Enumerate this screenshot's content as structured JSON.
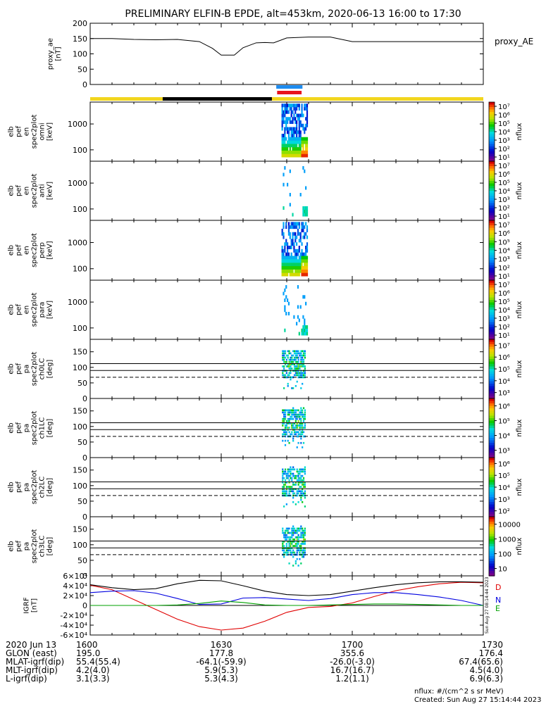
{
  "title": "PRELIMINARY ELFIN-B EPDE, alt=453km, 2020-06-13 16:00 to 17:30",
  "chart_data": [
    {
      "type": "line",
      "ylabel": [
        "proxy_ae",
        "[nT]"
      ],
      "legend": "proxy_AE",
      "ylim": [
        0,
        200
      ],
      "yticks": [
        "0",
        "50",
        "100",
        "150",
        "200"
      ],
      "x_minutes": [
        0,
        5,
        10,
        15,
        20,
        25,
        28,
        30,
        33,
        35,
        38,
        40,
        42,
        45,
        50,
        55,
        60,
        65,
        70,
        75,
        80,
        85,
        90
      ],
      "values": [
        150,
        150,
        147,
        146,
        147,
        140,
        118,
        96,
        96,
        120,
        136,
        137,
        136,
        152,
        155,
        155,
        140,
        140,
        140,
        140,
        140,
        140,
        140
      ]
    },
    {
      "type": "heatmap",
      "ylabel": [
        "elb",
        "pef",
        "en",
        "spec2plot",
        "omni",
        "[keV]"
      ],
      "yticks": [
        "100",
        "1000"
      ],
      "colorbar_ticks": [
        "10¹",
        "10²",
        "10³",
        "10⁴",
        "10⁵",
        "10⁶",
        "10⁷"
      ],
      "colorbar_label": "nflux",
      "log_scale": true
    },
    {
      "type": "heatmap",
      "ylabel": [
        "elb",
        "pef",
        "en",
        "spec2plot",
        "anti",
        "[keV]"
      ],
      "yticks": [
        "100",
        "1000"
      ],
      "colorbar_ticks": [
        "10¹",
        "10²",
        "10³",
        "10⁴",
        "10⁵",
        "10⁶",
        "10⁷"
      ],
      "colorbar_label": "nflux",
      "log_scale": true
    },
    {
      "type": "heatmap",
      "ylabel": [
        "elb",
        "pef",
        "en",
        "spec2plot",
        "perp",
        "[keV]"
      ],
      "yticks": [
        "100",
        "1000"
      ],
      "colorbar_ticks": [
        "10¹",
        "10²",
        "10³",
        "10⁴",
        "10⁵",
        "10⁶",
        "10⁷"
      ],
      "colorbar_label": "nflux",
      "log_scale": true
    },
    {
      "type": "heatmap",
      "ylabel": [
        "elb",
        "pef",
        "en",
        "spec2plot",
        "para",
        "[keV]"
      ],
      "yticks": [
        "100",
        "1000"
      ],
      "colorbar_ticks": [
        "10¹",
        "10²",
        "10³",
        "10⁴",
        "10⁵",
        "10⁶",
        "10⁷"
      ],
      "colorbar_label": "nflux",
      "log_scale": true
    },
    {
      "type": "heatmap",
      "ylabel": [
        "elb",
        "pef",
        "pa",
        "spec2plot",
        "ch0LC",
        "[deg]"
      ],
      "yticks": [
        "0",
        "50",
        "100",
        "150"
      ],
      "colorbar_ticks": [
        "10³",
        "10⁴",
        "10⁵",
        "10⁶",
        "10⁷"
      ],
      "colorbar_label": "nflux"
    },
    {
      "type": "heatmap",
      "ylabel": [
        "elb",
        "pef",
        "pa",
        "spec2plot",
        "ch1LC",
        "[deg]"
      ],
      "yticks": [
        "0",
        "50",
        "100",
        "150"
      ],
      "colorbar_ticks": [
        "10³",
        "10⁴",
        "10⁵",
        "10⁶"
      ],
      "colorbar_label": "nflux"
    },
    {
      "type": "heatmap",
      "ylabel": [
        "elb",
        "pef",
        "pa",
        "spec2plot",
        "ch2LC",
        "[deg]"
      ],
      "yticks": [
        "0",
        "50",
        "100",
        "150"
      ],
      "colorbar_ticks": [
        "10²",
        "10³",
        "10⁴",
        "10⁵",
        "10⁶"
      ],
      "colorbar_label": "nflux"
    },
    {
      "type": "heatmap",
      "ylabel": [
        "elb",
        "pef",
        "pa",
        "spec2plot",
        "ch3LC",
        "[deg]"
      ],
      "yticks": [
        "0",
        "50",
        "100",
        "150"
      ],
      "colorbar_ticks": [
        "10",
        "100",
        "1000",
        "10000"
      ],
      "colorbar_label": "nflux"
    },
    {
      "type": "line",
      "ylabel": [
        "IGRF",
        "[nT]"
      ],
      "yticks": [
        "-6×10⁴",
        "-4×10⁴",
        "-2×10⁴",
        "0",
        "2×10⁴",
        "4×10⁴",
        "6×10⁴"
      ],
      "ylim": [
        -60000,
        60000
      ],
      "x_minutes": [
        0,
        5,
        10,
        15,
        20,
        25,
        30,
        35,
        40,
        45,
        50,
        55,
        60,
        65,
        70,
        75,
        80,
        85,
        90
      ],
      "series": [
        {
          "name": "D",
          "color": "#e00000",
          "values": [
            41000,
            32000,
            12000,
            -8000,
            -28000,
            -43000,
            -50000,
            -46000,
            -32000,
            -14000,
            -4000,
            -2000,
            5000,
            18000,
            30000,
            38000,
            44000,
            47000,
            46000
          ]
        },
        {
          "name": "N",
          "color": "#0000e0",
          "values": [
            26000,
            29000,
            30000,
            25000,
            14000,
            2000,
            3000,
            15000,
            16000,
            13000,
            10000,
            14000,
            22000,
            26000,
            26000,
            22000,
            17000,
            10000,
            0
          ]
        },
        {
          "name": "E",
          "color": "#00a000",
          "values": [
            0,
            0,
            0,
            0,
            1000,
            4000,
            9000,
            6000,
            1000,
            0,
            0,
            1000,
            2000,
            3000,
            3000,
            2000,
            1000,
            0,
            0
          ]
        },
        {
          "name": "",
          "color": "#000000",
          "values": [
            42000,
            36000,
            32000,
            34000,
            44000,
            51000,
            50000,
            40000,
            29000,
            22000,
            20000,
            22000,
            29000,
            36000,
            42000,
            46000,
            48000,
            48000,
            47000
          ]
        }
      ]
    }
  ],
  "x_axis": {
    "row_labels": [
      "2020 Jun 13",
      "GLON (east)",
      "MLAT-igrf(dip)",
      "MLT-igrf(dip)",
      "L-igrf(dip)"
    ],
    "ticks": [
      {
        "minutes": 0,
        "rows": [
          "1600",
          "195.0",
          "55.4(55.4)",
          "4.2(4.0)",
          "3.1(3.3)"
        ]
      },
      {
        "minutes": 30,
        "rows": [
          "1630",
          "177.8",
          "-64.1(-59.9)",
          "5.9(5.3)",
          "5.3(4.3)"
        ]
      },
      {
        "minutes": 60,
        "rows": [
          "1700",
          "355.6",
          "-26.0(-3.0)",
          "16.7(16.7)",
          "1.2(1.1)"
        ]
      },
      {
        "minutes": 90,
        "rows": [
          "1730",
          "176.4",
          "67.4(65.6)",
          "4.5(4.0)",
          "6.9(6.3)"
        ]
      }
    ]
  },
  "footer": {
    "units": "nflux: #/(cm^2 s sr MeV)",
    "created": "Created: Sun Aug 27 15:14:44 2023",
    "side_stamp": "Sun Aug 27 08:14:44 2023"
  }
}
